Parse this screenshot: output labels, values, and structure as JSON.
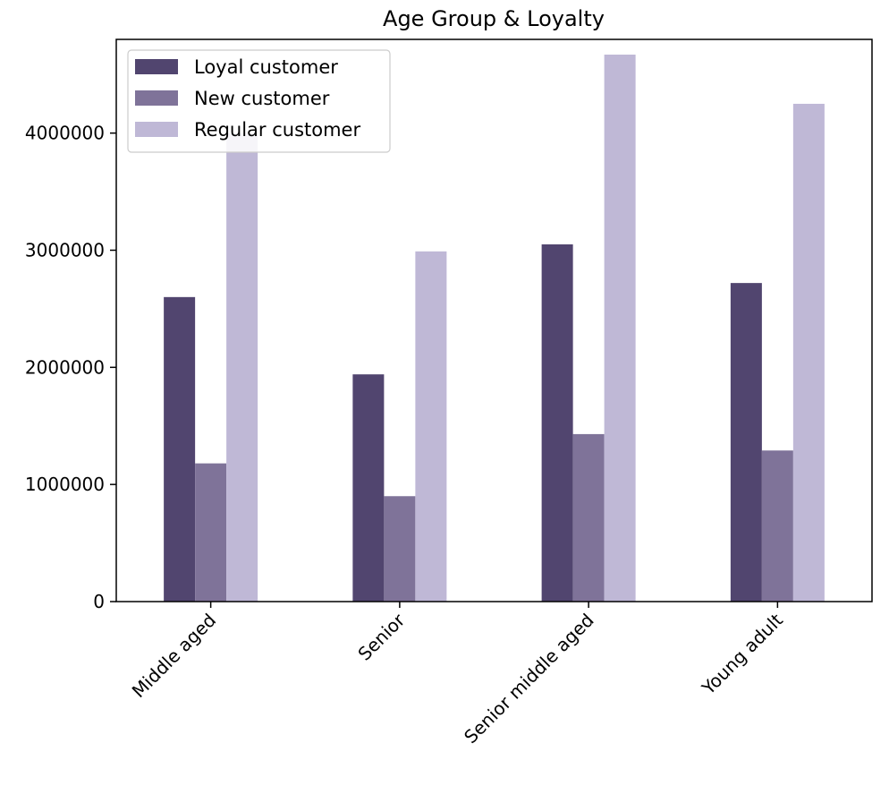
{
  "chart_data": {
    "type": "bar",
    "title": "Age Group & Loyalty",
    "xlabel": "",
    "ylabel": "",
    "categories": [
      "Middle aged",
      "Senior",
      "Senior middle aged",
      "Young adult"
    ],
    "series": [
      {
        "name": "Loyal customer",
        "color": "#51456f",
        "values": [
          2600000,
          1940000,
          3050000,
          2720000
        ]
      },
      {
        "name": "New customer",
        "color": "#7f7399",
        "values": [
          1180000,
          900000,
          1430000,
          1290000
        ]
      },
      {
        "name": "Regular customer",
        "color": "#bfb8d6",
        "values": [
          4000000,
          2990000,
          4670000,
          4250000
        ]
      }
    ],
    "ylim": [
      0,
      4800000
    ],
    "yticks": [
      0,
      1000000,
      2000000,
      3000000,
      4000000
    ],
    "ytick_labels": [
      "0",
      "1000000",
      "2000000",
      "3000000",
      "4000000"
    ],
    "xtick_rotation": 45,
    "grid": false,
    "legend_position": "top-left"
  }
}
